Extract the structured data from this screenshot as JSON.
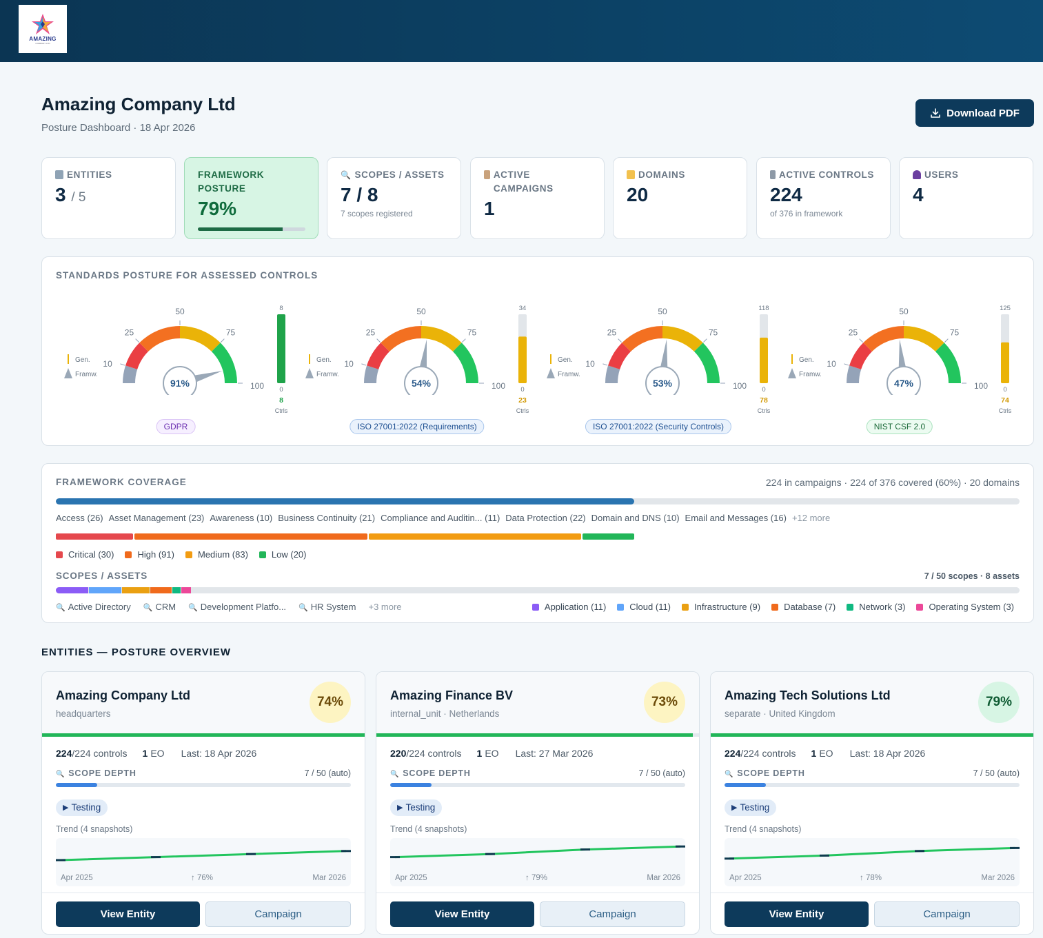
{
  "brand": {
    "logo_text": "AMAZING",
    "logo_sub": "COMPANY LTD"
  },
  "header": {
    "title": "Amazing Company Ltd",
    "subtitle": "Posture Dashboard · 18 Apr 2026",
    "download_label": "Download PDF"
  },
  "stats": {
    "entities": {
      "label": "ENTITIES",
      "value": "3",
      "total": "/ 5"
    },
    "framework": {
      "label": "FRAMEWORK POSTURE",
      "value": "79%",
      "fill": 0.79
    },
    "scopes": {
      "label": "SCOPES / ASSETS",
      "value": "7 / 8",
      "note": "7 scopes registered"
    },
    "campaigns": {
      "label": "ACTIVE CAMPAIGNS",
      "value": "1"
    },
    "domains": {
      "label": "DOMAINS",
      "value": "20"
    },
    "controls": {
      "label": "ACTIVE CONTROLS",
      "value": "224",
      "note": "of 376 in framework"
    },
    "users": {
      "label": "USERS",
      "value": "4"
    }
  },
  "standards": {
    "title": "STANDARDS POSTURE FOR ASSESSED CONTROLS",
    "legend_gen": "Gen.",
    "legend_fw": "Framw.",
    "ticks": [
      "10",
      "25",
      "50",
      "75",
      "100"
    ],
    "ctrls_label": "Ctrls",
    "zero_label": "0",
    "items": [
      {
        "name": "GDPR",
        "pct": 91,
        "pct_label": "91%",
        "ctrl_max": "8",
        "ctrl_val": "8",
        "ctrl_fill": 1.0,
        "color": "#1fa34a",
        "pill_bg": "#f6efff",
        "pill_border": "#d9c2f5",
        "pill_color": "#6a2fb0"
      },
      {
        "name": "ISO 27001:2022 (Requirements)",
        "pct": 54,
        "pct_label": "54%",
        "ctrl_max": "34",
        "ctrl_val": "23",
        "ctrl_fill": 0.676,
        "color": "#eab308",
        "pill_bg": "#eaf2fc",
        "pill_border": "#a9c6ec",
        "pill_color": "#1d4f91"
      },
      {
        "name": "ISO 27001:2022 (Security Controls)",
        "pct": 53,
        "pct_label": "53%",
        "ctrl_max": "118",
        "ctrl_val": "78",
        "ctrl_fill": 0.661,
        "color": "#eab308",
        "pill_bg": "#eaf2fc",
        "pill_border": "#a9c6ec",
        "pill_color": "#1d4f91"
      },
      {
        "name": "NIST CSF 2.0",
        "pct": 47,
        "pct_label": "47%",
        "ctrl_max": "125",
        "ctrl_val": "74",
        "ctrl_fill": 0.592,
        "color": "#eab308",
        "pill_bg": "#ecfbf1",
        "pill_border": "#a8e2bd",
        "pill_color": "#1d6b3a"
      }
    ]
  },
  "coverage": {
    "title": "FRAMEWORK COVERAGE",
    "summary": "224 in campaigns · 224 of 376 covered (60%) · 20 domains",
    "fill": 0.6,
    "domains": [
      "Access (26)",
      "Asset Management (23)",
      "Awareness (10)",
      "Business Continuity (21)",
      "Compliance and Auditin... (11)",
      "Data Protection (22)",
      "Domain and DNS (10)",
      "Email and Messages (16)"
    ],
    "domains_more": "+12 more",
    "severity": [
      {
        "label": "Critical (30)",
        "count": 30,
        "color": "#e5484d"
      },
      {
        "label": "High (91)",
        "count": 91,
        "color": "#f06a1c"
      },
      {
        "label": "Medium (83)",
        "count": 83,
        "color": "#f29c12"
      },
      {
        "label": "Low (20)",
        "count": 20,
        "color": "#22b659"
      }
    ],
    "scopes_title": "SCOPES / ASSETS",
    "scopes_summary": "7 / 50 scopes · 8 assets",
    "scope_segments": [
      {
        "label": "Application (11)",
        "color": "#8b5cf6"
      },
      {
        "label": "Cloud (11)",
        "color": "#60a5fa"
      },
      {
        "label": "Infrastructure (9)",
        "color": "#eaa012"
      },
      {
        "label": "Database (7)",
        "color": "#f06a1c"
      },
      {
        "label": "Network (3)",
        "color": "#10b981"
      },
      {
        "label": "Operating System (3)",
        "color": "#ec4899"
      }
    ],
    "scope_names": [
      "Active Directory",
      "CRM",
      "Development Platfo...",
      "HR System"
    ],
    "scope_more": "+3 more"
  },
  "entities_title": "ENTITIES — POSTURE OVERVIEW",
  "entities": [
    {
      "name": "Amazing Company Ltd",
      "sub": "headquarters",
      "pct": "74%",
      "badge_bg": "#fdf4c2",
      "badge_color": "#6b4a08",
      "line_fill": 1.0,
      "controls_done": "224",
      "controls_total": "/224 controls",
      "eo": "1",
      "eo_label": "EO",
      "last": "Last: 18 Apr 2026",
      "scope_label": "SCOPE DEPTH",
      "scope_value": "7 / 50 (auto)",
      "scope_fill": 0.14,
      "status": "Testing",
      "trend_label": "Trend (4 snapshots)",
      "trend_start": "Apr 2025",
      "trend_mid": "↑ 76%",
      "trend_end": "Mar 2026",
      "trend": [
        70,
        72,
        74,
        76
      ],
      "view": "View Entity",
      "campaign": "Campaign"
    },
    {
      "name": "Amazing Finance BV",
      "sub": "internal_unit · Netherlands",
      "pct": "73%",
      "badge_bg": "#fdf4c2",
      "badge_color": "#6b4a08",
      "line_fill": 0.98,
      "controls_done": "220",
      "controls_total": "/224 controls",
      "eo": "1",
      "eo_label": "EO",
      "last": "Last: 27 Mar 2026",
      "scope_label": "SCOPE DEPTH",
      "scope_value": "7 / 50 (auto)",
      "scope_fill": 0.14,
      "status": "Testing",
      "trend_label": "Trend (4 snapshots)",
      "trend_start": "Apr 2025",
      "trend_mid": "↑ 79%",
      "trend_end": "Mar 2026",
      "trend": [
        72,
        74,
        77,
        79
      ],
      "view": "View Entity",
      "campaign": "Campaign"
    },
    {
      "name": "Amazing Tech Solutions Ltd",
      "sub": "separate · United Kingdom",
      "pct": "79%",
      "badge_bg": "#d7f5e4",
      "badge_color": "#0f5b33",
      "line_fill": 1.0,
      "controls_done": "224",
      "controls_total": "/224 controls",
      "eo": "1",
      "eo_label": "EO",
      "last": "Last: 18 Apr 2026",
      "scope_label": "SCOPE DEPTH",
      "scope_value": "7 / 50 (auto)",
      "scope_fill": 0.14,
      "status": "Testing",
      "trend_label": "Trend (4 snapshots)",
      "trend_start": "Apr 2025",
      "trend_mid": "↑ 78%",
      "trend_end": "Mar 2026",
      "trend": [
        71,
        73,
        76,
        78
      ],
      "view": "View Entity",
      "campaign": "Campaign"
    }
  ]
}
